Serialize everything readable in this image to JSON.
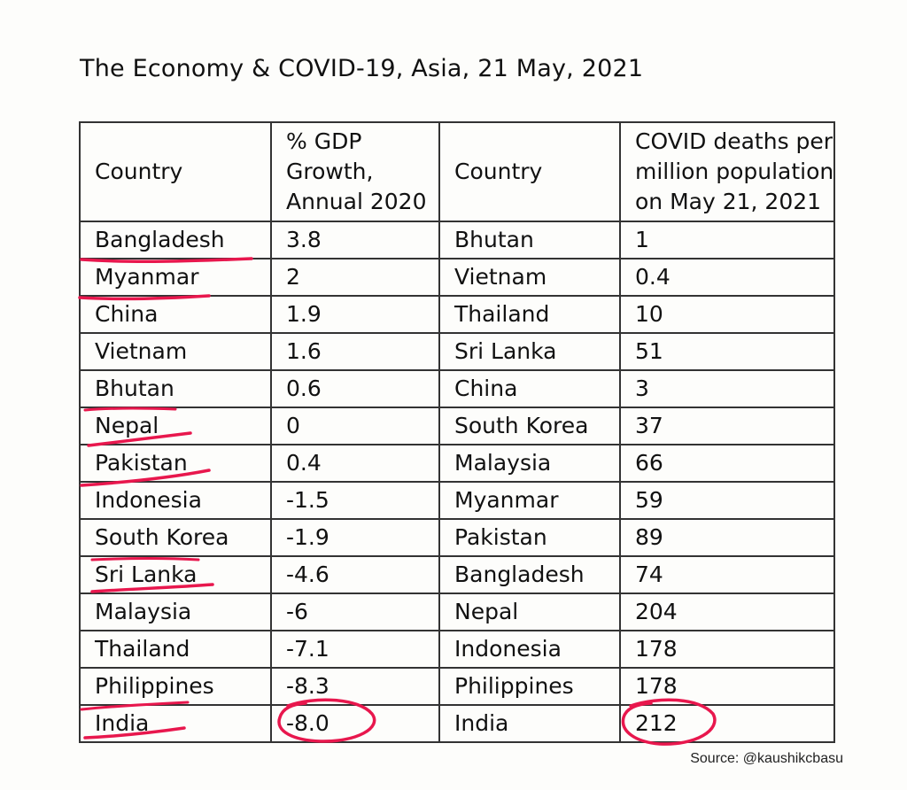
{
  "title": "The Economy & COVID-19, Asia, 21 May, 2021",
  "headers": {
    "country_left": "Country",
    "gdp_lines": [
      "% GDP",
      "Growth,",
      "Annual 2020"
    ],
    "country_right": "Country",
    "deaths_lines": [
      "COVID deaths per",
      "million population",
      "on May 21, 2021"
    ]
  },
  "rows": [
    {
      "gdp_country": "Bangladesh",
      "gdp": "3.8",
      "covid_country": "Bhutan",
      "deaths": "1"
    },
    {
      "gdp_country": "Myanmar",
      "gdp": "2",
      "covid_country": "Vietnam",
      "deaths": "0.4"
    },
    {
      "gdp_country": "China",
      "gdp": "1.9",
      "covid_country": "Thailand",
      "deaths": "10"
    },
    {
      "gdp_country": "Vietnam",
      "gdp": "1.6",
      "covid_country": "Sri Lanka",
      "deaths": "51"
    },
    {
      "gdp_country": "Bhutan",
      "gdp": "0.6",
      "covid_country": "China",
      "deaths": "3"
    },
    {
      "gdp_country": "Nepal",
      "gdp": "0",
      "covid_country": "South Korea",
      "deaths": "37"
    },
    {
      "gdp_country": "Pakistan",
      "gdp": "0.4",
      "covid_country": "Malaysia",
      "deaths": "66"
    },
    {
      "gdp_country": "Indonesia",
      "gdp": "-1.5",
      "covid_country": "Myanmar",
      "deaths": "59"
    },
    {
      "gdp_country": "South Korea",
      "gdp": "-1.9",
      "covid_country": "Pakistan",
      "deaths": "89"
    },
    {
      "gdp_country": "Sri Lanka",
      "gdp": "-4.6",
      "covid_country": "Bangladesh",
      "deaths": "74"
    },
    {
      "gdp_country": "Malaysia",
      "gdp": "-6",
      "covid_country": "Nepal",
      "deaths": "204"
    },
    {
      "gdp_country": "Thailand",
      "gdp": "-7.1",
      "covid_country": "Indonesia",
      "deaths": "178"
    },
    {
      "gdp_country": "Philippines",
      "gdp": "-8.3",
      "covid_country": "Philippines",
      "deaths": "178"
    },
    {
      "gdp_country": "India",
      "gdp": "-8.0",
      "covid_country": "India",
      "deaths": "212"
    }
  ],
  "source": "Source: @kaushikcbasu",
  "annotation_color": "#e8174d"
}
